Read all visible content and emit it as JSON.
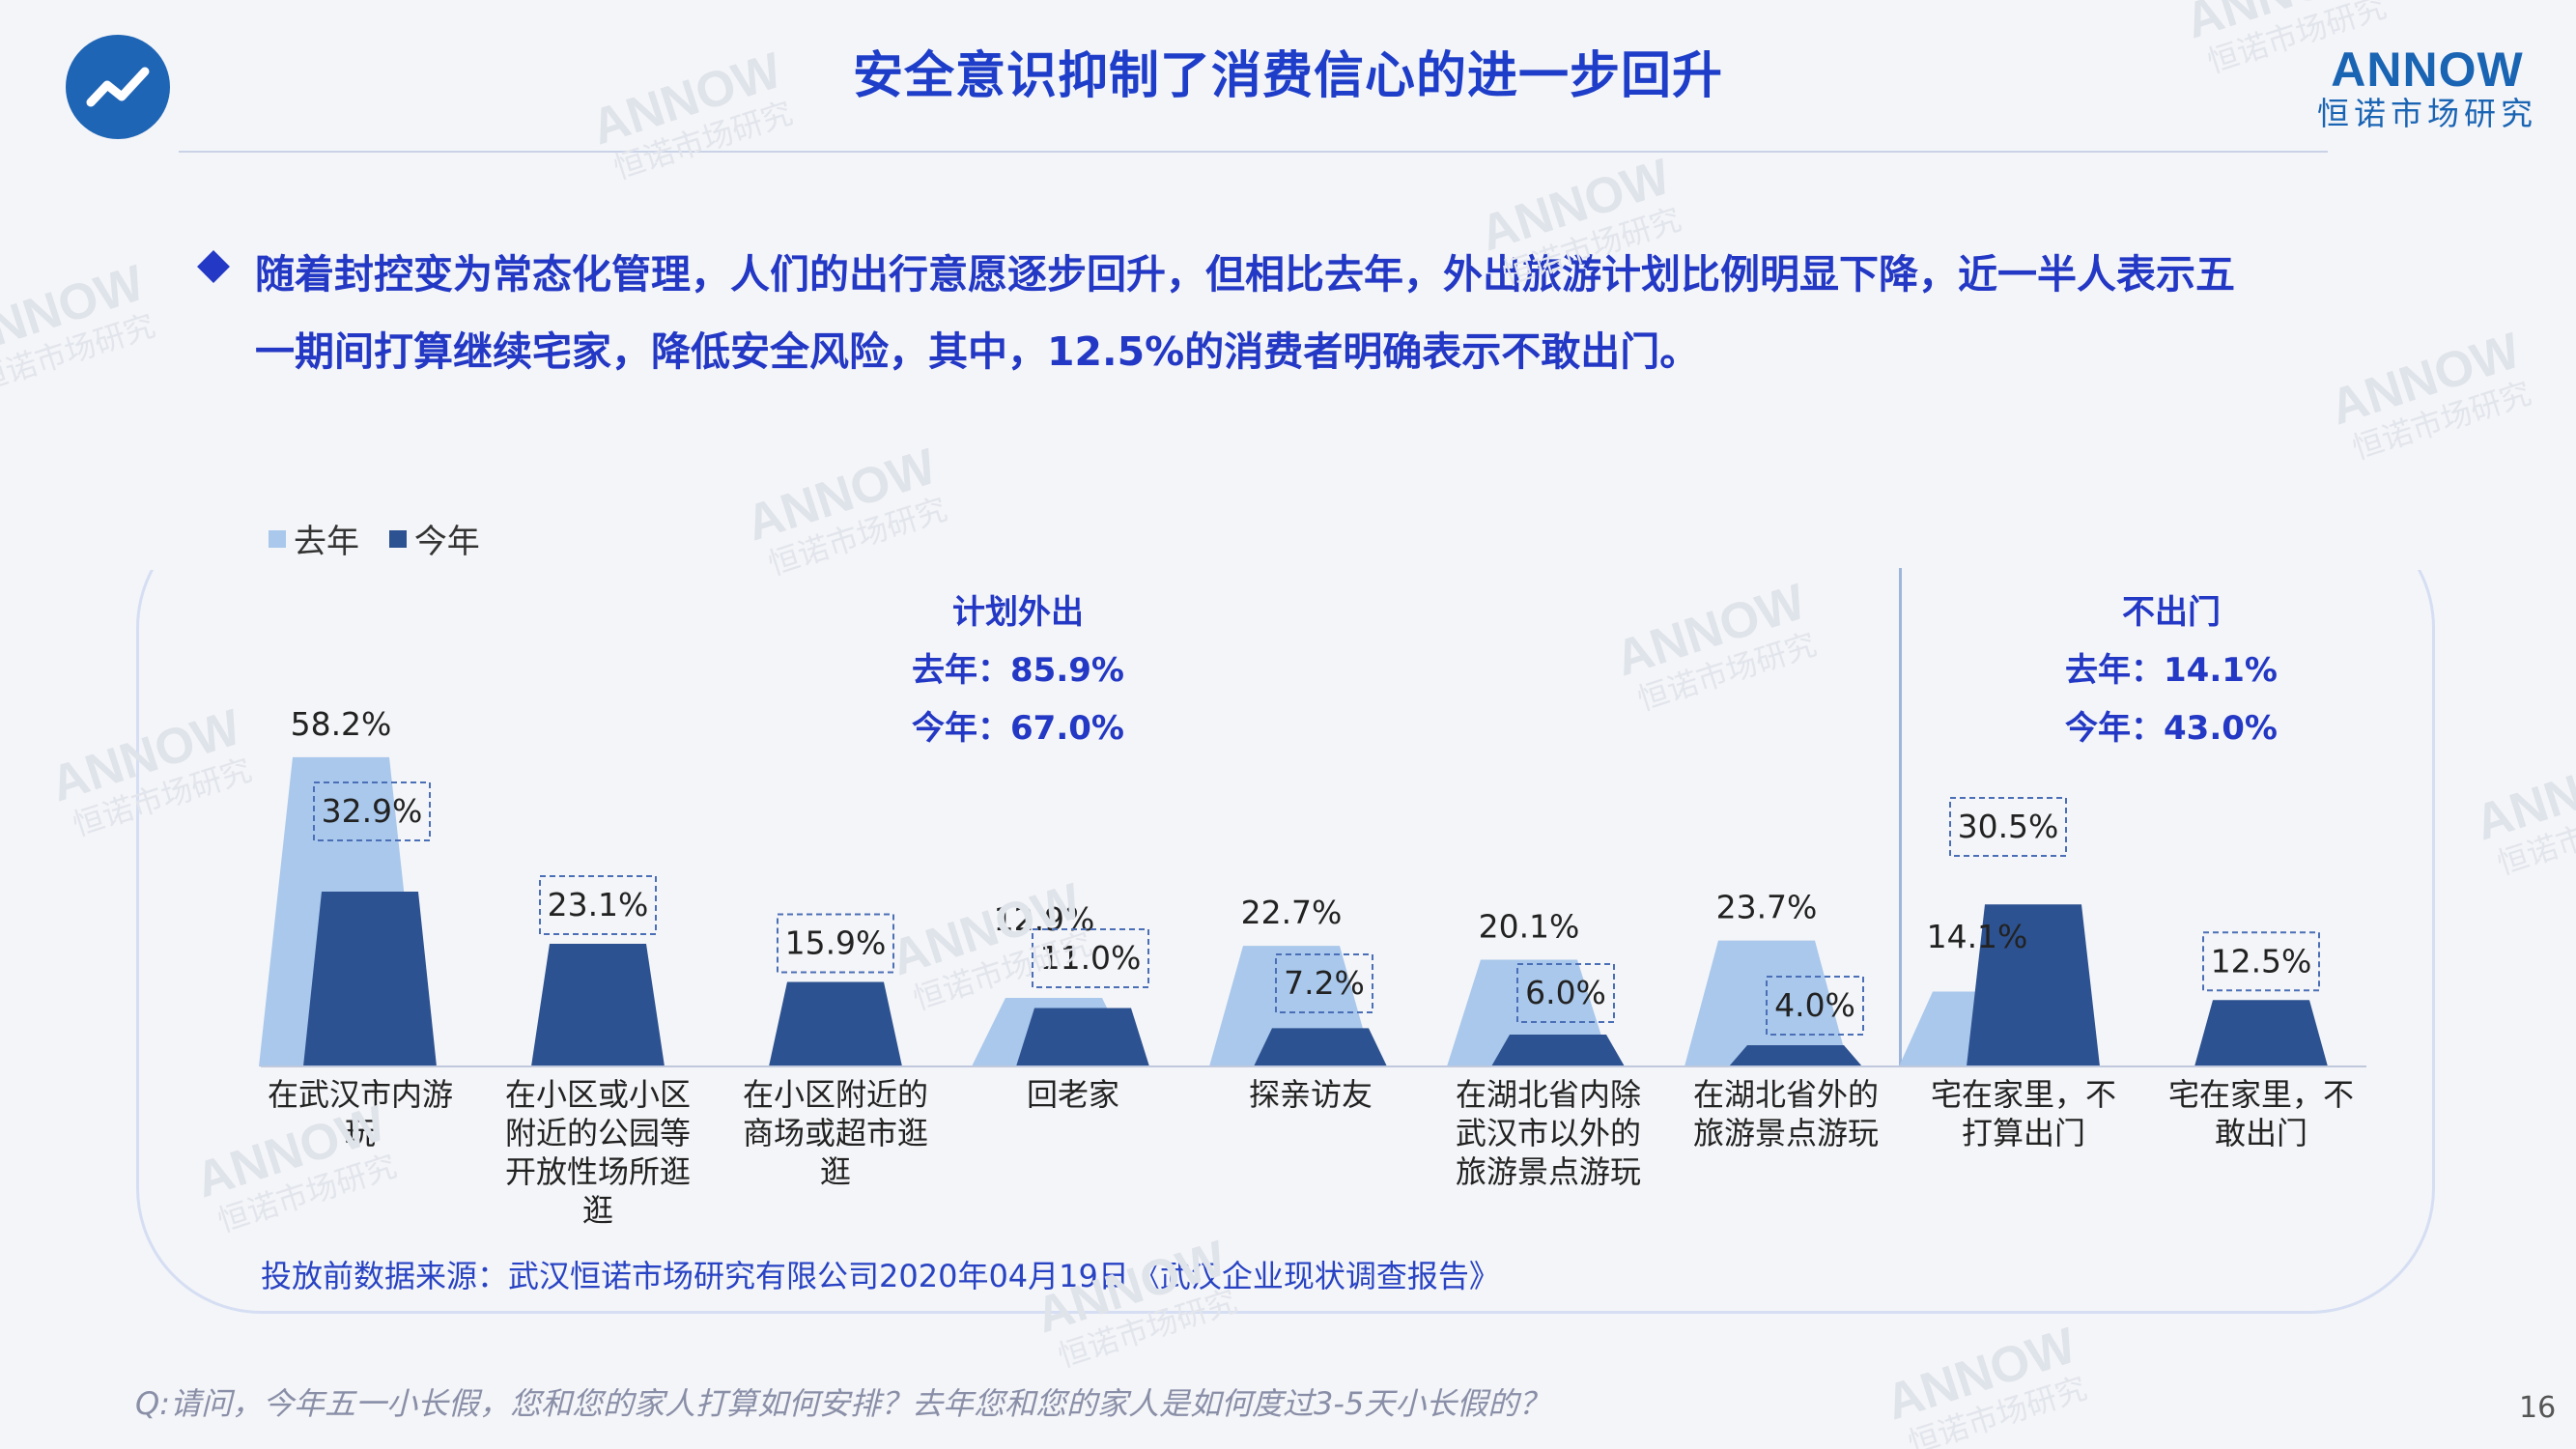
{
  "header": {
    "title": "安全意识抑制了消费信心的进一步回升",
    "brand_name": "ANNOW",
    "brand_sub": "恒诺市场研究"
  },
  "bullet": {
    "lines": [
      "随着封控变为常态化管理，人们的出行意愿逐步回升，但相比去年，外出旅游计划比例明显下降，近一半人表示五",
      "一期间打算继续宅家，降低安全风险，其中，12.5%的消费者明确表示不敢出门。"
    ]
  },
  "groups": {
    "plan": {
      "title": "计划外出",
      "last": "去年：85.9%",
      "this": "今年：67.0%"
    },
    "stay": {
      "title": "不出门",
      "last": "去年：14.1%",
      "this": "今年：43.0%"
    }
  },
  "chart_data": {
    "type": "bar",
    "categories": [
      [
        "在武汉市内游",
        "玩"
      ],
      [
        "在小区或小区",
        "附近的公园等",
        "开放性场所逛",
        "逛"
      ],
      [
        "在小区附近的",
        "商场或超市逛",
        "逛"
      ],
      [
        "回老家"
      ],
      [
        "探亲访友"
      ],
      [
        "在湖北省内除",
        "武汉市以外的",
        "旅游景点游玩"
      ],
      [
        "在湖北省外的",
        "旅游景点游玩"
      ],
      [
        "宅在家里，不",
        "打算出门"
      ],
      [
        "宅在家里，不",
        "敢出门"
      ]
    ],
    "series": [
      {
        "name": "去年",
        "color": "#a9c8ec",
        "values": [
          58.2,
          null,
          null,
          12.9,
          22.7,
          20.1,
          23.7,
          14.1,
          null
        ]
      },
      {
        "name": "今年",
        "color": "#2d5291",
        "values": [
          32.9,
          23.1,
          15.9,
          11.0,
          7.2,
          6.0,
          4.0,
          30.5,
          12.5
        ]
      }
    ],
    "value_labels": {
      "last": [
        "58.2%",
        "",
        "",
        "12.9%",
        "22.7%",
        "20.1%",
        "23.7%",
        "14.1%",
        ""
      ],
      "this": [
        "32.9%",
        "23.1%",
        "15.9%",
        "11.0%",
        "7.2%",
        "6.0%",
        "4.0%",
        "30.5%",
        "12.5%"
      ]
    },
    "ylim": [
      0,
      60
    ],
    "grid": false,
    "legend": "top-left"
  },
  "footer": {
    "source": "投放前数据来源：武汉恒诺市场研究有限公司2020年04月19日《武汉企业现状调查报告》",
    "question": "Q:请问，今年五一小长假，您和您的家人打算如何安排？去年您和您的家人是如何度过3-5天小长假的？",
    "page": "16"
  },
  "watermark": {
    "brand": "ANNOW",
    "sub": "恒诺市场研究"
  }
}
